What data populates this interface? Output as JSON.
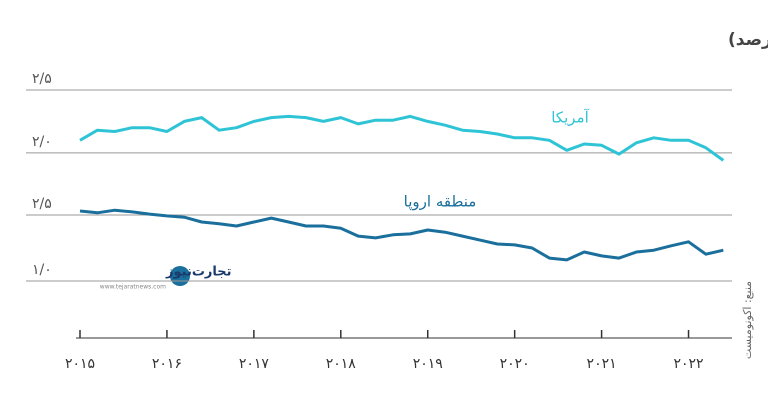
{
  "title": "نرخ بهره شناور وابسته به تورم (درصد)",
  "source": "منبع: اکونومیست",
  "watermark": {
    "name": "تجارت‌نیوز",
    "site": "www.tejaratnews.com"
  },
  "chart_data": [
    {
      "type": "line",
      "x": [
        2015.0,
        2015.2,
        2015.4,
        2015.6,
        2015.8,
        2016.0,
        2016.2,
        2016.4,
        2016.6,
        2016.8,
        2017.0,
        2017.2,
        2017.4,
        2017.6,
        2017.8,
        2018.0,
        2018.2,
        2018.4,
        2018.6,
        2018.8,
        2019.0,
        2019.2,
        2019.4,
        2019.6,
        2019.8,
        2020.0,
        2020.2,
        2020.4,
        2020.6,
        2020.8,
        2021.0,
        2021.2,
        2021.4,
        2021.6,
        2021.8,
        2022.0,
        2022.2,
        2022.4
      ],
      "series": [
        {
          "name": "آمریکا",
          "color": "#2ec4d6",
          "values": [
            2.1,
            2.18,
            2.17,
            2.2,
            2.2,
            2.17,
            2.25,
            2.28,
            2.18,
            2.2,
            2.25,
            2.28,
            2.29,
            2.28,
            2.25,
            2.28,
            2.23,
            2.26,
            2.26,
            2.29,
            2.25,
            2.22,
            2.18,
            2.17,
            2.15,
            2.12,
            2.12,
            2.1,
            2.02,
            2.07,
            2.06,
            1.99,
            2.08,
            2.12,
            2.1,
            2.1,
            2.04,
            1.94
          ]
        }
      ],
      "ylim": [
        1.8,
        2.6
      ],
      "yticks": [
        {
          "value": 2.5,
          "label": "۲/۵"
        },
        {
          "value": 2.0,
          "label": "۲/۰"
        }
      ],
      "grid": true
    },
    {
      "type": "line",
      "x": [
        2015.0,
        2015.2,
        2015.4,
        2015.6,
        2015.8,
        2016.0,
        2016.2,
        2016.4,
        2016.6,
        2016.8,
        2017.0,
        2017.2,
        2017.4,
        2017.6,
        2017.8,
        2018.0,
        2018.2,
        2018.4,
        2018.6,
        2018.8,
        2019.0,
        2019.2,
        2019.4,
        2019.6,
        2019.8,
        2020.0,
        2020.2,
        2020.4,
        2020.6,
        2020.8,
        2021.0,
        2021.2,
        2021.4,
        2021.6,
        2021.8,
        2022.0,
        2022.2,
        2022.4
      ],
      "series": [
        {
          "name": "منطقه اروپا",
          "color": "#1a6f9c",
          "values": [
            2.59,
            2.55,
            2.61,
            2.57,
            2.52,
            2.48,
            2.45,
            2.34,
            2.3,
            2.25,
            2.34,
            2.43,
            2.34,
            2.25,
            2.25,
            2.2,
            2.02,
            1.98,
            2.05,
            2.07,
            2.16,
            2.11,
            2.02,
            1.93,
            1.84,
            1.82,
            1.75,
            1.52,
            1.48,
            1.66,
            1.57,
            1.52,
            1.66,
            1.7,
            1.8,
            1.89,
            1.61,
            1.7
          ]
        }
      ],
      "ylim": [
        0.5,
        2.8
      ],
      "yticks": [
        {
          "value": 2.5,
          "label": "۲/۵"
        },
        {
          "value": 1.0,
          "label": "۱/۰"
        }
      ],
      "xlim": [
        2015,
        2022.5
      ],
      "xticks": [
        {
          "value": 2015,
          "label": "۲۰۱۵"
        },
        {
          "value": 2016,
          "label": "۲۰۱۶"
        },
        {
          "value": 2017,
          "label": "۲۰۱۷"
        },
        {
          "value": 2018,
          "label": "۲۰۱۸"
        },
        {
          "value": 2019,
          "label": "۲۰۱۹"
        },
        {
          "value": 2020,
          "label": "۲۰۲۰"
        },
        {
          "value": 2021,
          "label": "۲۰۲۱"
        },
        {
          "value": 2022,
          "label": "۲۰۲۲"
        }
      ],
      "grid": true
    }
  ]
}
